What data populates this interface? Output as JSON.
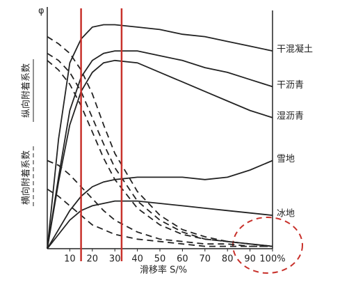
{
  "chart_data": {
    "type": "line",
    "y_label": "φ",
    "x_label": "滑移率 S/%",
    "longitudinal_label": "纵向附着系数",
    "lateral_label": "横向附着系数",
    "x": [
      0,
      5,
      10,
      15,
      20,
      25,
      30,
      40,
      50,
      60,
      70,
      80,
      90,
      100
    ],
    "xlim": [
      0,
      100
    ],
    "ylim": [
      0,
      1
    ],
    "xticks": [
      10,
      20,
      30,
      40,
      50,
      60,
      70,
      80,
      90,
      {
        "value": 100,
        "label": "100%"
      }
    ],
    "vlines": [
      15,
      33
    ],
    "vline_color": "#c8312b",
    "series": [
      {
        "name": "干混凝土",
        "color": "#222222",
        "values": [
          0,
          0.46,
          0.78,
          0.88,
          0.93,
          0.94,
          0.94,
          0.93,
          0.92,
          0.9,
          0.89,
          0.87,
          0.85,
          0.83
        ],
        "lateral_values": [
          0.89,
          0.86,
          0.82,
          0.75,
          0.65,
          0.52,
          0.4,
          0.24,
          0.14,
          0.08,
          0.05,
          0.03,
          0.02,
          0.01
        ]
      },
      {
        "name": "干沥青",
        "color": "#222222",
        "values": [
          0,
          0.3,
          0.58,
          0.72,
          0.79,
          0.82,
          0.83,
          0.83,
          0.81,
          0.79,
          0.76,
          0.74,
          0.71,
          0.68
        ],
        "lateral_values": [
          0.82,
          0.79,
          0.74,
          0.66,
          0.55,
          0.44,
          0.34,
          0.2,
          0.12,
          0.07,
          0.04,
          0.03,
          0.02,
          0.01
        ]
      },
      {
        "name": "湿沥青",
        "color": "#222222",
        "values": [
          0,
          0.28,
          0.52,
          0.66,
          0.74,
          0.78,
          0.79,
          0.78,
          0.74,
          0.7,
          0.66,
          0.62,
          0.58,
          0.55
        ],
        "lateral_values": [
          0.79,
          0.75,
          0.69,
          0.6,
          0.49,
          0.38,
          0.29,
          0.17,
          0.1,
          0.06,
          0.04,
          0.03,
          0.02,
          0.01
        ]
      },
      {
        "name": "雪地",
        "color": "#222222",
        "values": [
          0,
          0.08,
          0.16,
          0.22,
          0.26,
          0.28,
          0.29,
          0.3,
          0.3,
          0.3,
          0.29,
          0.3,
          0.33,
          0.37
        ],
        "lateral_values": [
          0.37,
          0.35,
          0.31,
          0.26,
          0.21,
          0.16,
          0.12,
          0.07,
          0.04,
          0.03,
          0.02,
          0.02,
          0.01,
          0.01
        ]
      },
      {
        "name": "冰地",
        "color": "#222222",
        "values": [
          0,
          0.06,
          0.12,
          0.16,
          0.18,
          0.19,
          0.2,
          0.2,
          0.19,
          0.18,
          0.17,
          0.16,
          0.15,
          0.14
        ],
        "lateral_values": [
          0.25,
          0.22,
          0.18,
          0.14,
          0.1,
          0.08,
          0.06,
          0.04,
          0.03,
          0.02,
          0.01,
          0.01,
          0.01,
          0.01
        ]
      }
    ]
  }
}
